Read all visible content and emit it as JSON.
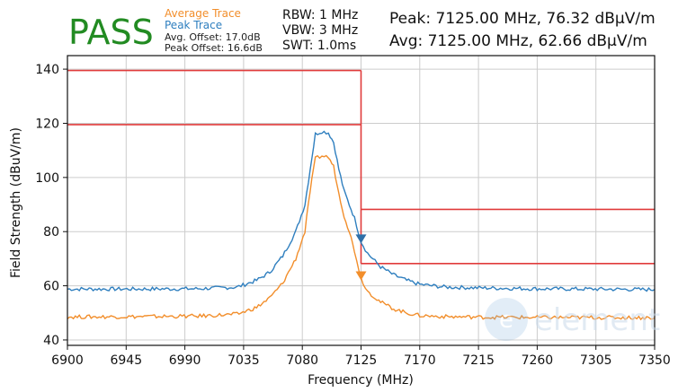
{
  "header": {
    "verdict": "PASS",
    "verdict_color": "#228b22",
    "legend": [
      {
        "label": "Average Trace",
        "color": "#f28e2b"
      },
      {
        "label": "Peak Trace",
        "color": "#2f7fbf"
      }
    ],
    "avg_offset": "Avg. Offset: 17.0dB",
    "peak_offset": "Peak Offset: 16.6dB",
    "rbw": "RBW: 1 MHz",
    "vbw": "VBW: 3 MHz",
    "swt": "SWT: 1.0ms",
    "peak_readout": "Peak: 7125.00 MHz, 76.32 dBµV/m",
    "avg_readout": "Avg: 7125.00 MHz, 62.66 dBµV/m"
  },
  "watermark": "element",
  "chart_data": {
    "type": "line",
    "xlabel": "Frequency (MHz)",
    "ylabel": "Field Strength (dBuV/m)",
    "xlim": [
      6900,
      7350
    ],
    "ylim": [
      38,
      145
    ],
    "xticks": [
      6900,
      6945,
      6990,
      7035,
      7080,
      7125,
      7170,
      7215,
      7260,
      7305,
      7350
    ],
    "yticks": [
      40,
      60,
      80,
      100,
      120,
      140
    ],
    "grid": true,
    "series": [
      {
        "name": "Peak Trace",
        "color": "#2f7fbf",
        "x": [
          6900,
          6950,
          7000,
          7030,
          7045,
          7055,
          7065,
          7075,
          7082,
          7086,
          7090,
          7095,
          7100,
          7104,
          7108,
          7112,
          7116,
          7120,
          7125,
          7130,
          7140,
          7150,
          7160,
          7170,
          7190,
          7220,
          7260,
          7300,
          7350
        ],
        "y": [
          58.8,
          58.8,
          58.9,
          59.5,
          62,
          65,
          71,
          80,
          90,
          103,
          116,
          117,
          116.5,
          113,
          103,
          95,
          90,
          85,
          76.3,
          72,
          67,
          64,
          62,
          60.5,
          59.5,
          59.2,
          58.9,
          58.8,
          58.6
        ]
      },
      {
        "name": "Average Trace",
        "color": "#f28e2b",
        "x": [
          6900,
          6950,
          7000,
          7030,
          7045,
          7055,
          7065,
          7075,
          7082,
          7086,
          7090,
          7095,
          7100,
          7104,
          7108,
          7112,
          7116,
          7120,
          7125,
          7130,
          7140,
          7150,
          7160,
          7170,
          7190,
          7220,
          7260,
          7300,
          7350
        ],
        "y": [
          48.5,
          48.6,
          48.8,
          49.5,
          52,
          55.5,
          61,
          70,
          80,
          95,
          107,
          108,
          107.5,
          104,
          94,
          86,
          80,
          73,
          62.7,
          58,
          54,
          51.5,
          50,
          49,
          48.6,
          48.4,
          48.3,
          48.3,
          48.2
        ]
      }
    ],
    "limit_lines": [
      {
        "name": "Peak Limit",
        "color": "#e03b3b",
        "segments": [
          [
            6900,
            139.5,
            7125,
            139.5
          ],
          [
            7125,
            88.2,
            7350,
            88.2
          ]
        ]
      },
      {
        "name": "Average Limit",
        "color": "#e03b3b",
        "segments": [
          [
            6900,
            119.5,
            7125,
            119.5
          ],
          [
            7125,
            68.2,
            7350,
            68.2
          ]
        ]
      },
      {
        "name": "Band Edge",
        "color": "#e03b3b",
        "segments": [
          [
            7125,
            139.5,
            7125,
            68.2
          ]
        ]
      }
    ],
    "markers": [
      {
        "series": "Peak Trace",
        "x": 7125,
        "y": 76.32,
        "color": "#2f6fa8"
      },
      {
        "series": "Average Trace",
        "x": 7125,
        "y": 62.66,
        "color": "#f28e2b"
      }
    ]
  }
}
